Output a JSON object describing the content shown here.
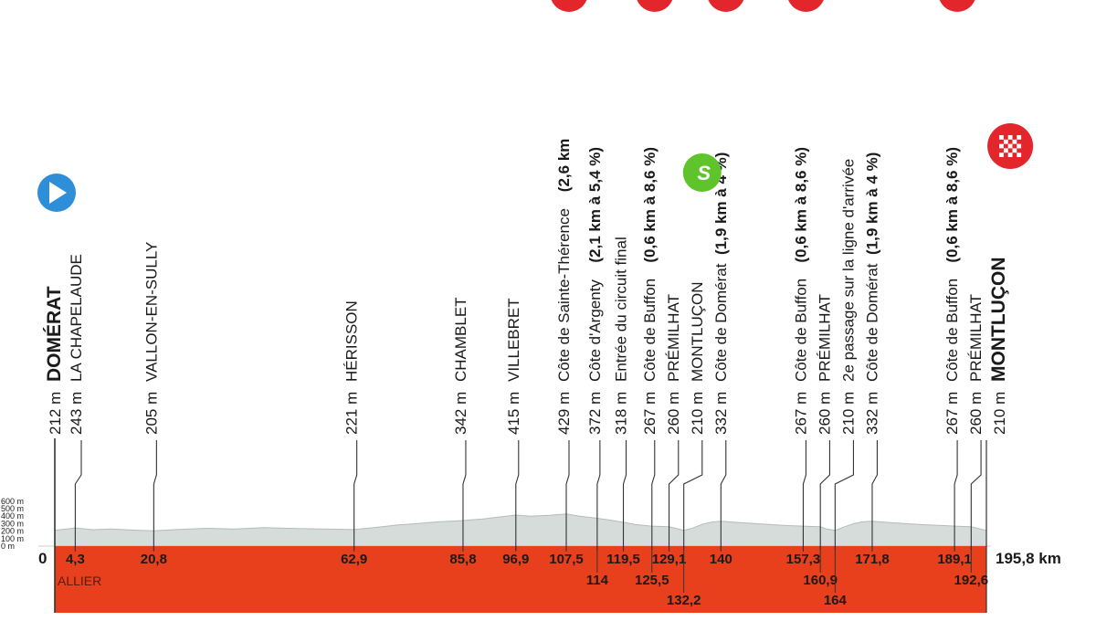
{
  "profile": {
    "unit_alt": "m",
    "unit_km": "km",
    "total_distance_label": "195,8 km",
    "department": "ALLIER",
    "altitude_scale": [
      "600 m",
      "500 m",
      "400 m",
      "300 m",
      "200 m",
      "100 m",
      "0 m"
    ],
    "origin_label": "0",
    "colors": {
      "base": "#e8401c",
      "terrain": "#d6dcda",
      "terrain_line": "#b3bcb9",
      "start_marker": "#2e8fd8",
      "sprint_marker": "#5fc42c",
      "climb_marker": "#e3262b",
      "finish_marker": "#e3262b",
      "text": "#1a1a1a"
    }
  },
  "waypoints": [
    {
      "km": 0,
      "km_label": "",
      "alt": "212 m",
      "name": "DOMÉRAT",
      "bold": true,
      "marker": "start"
    },
    {
      "km": 4.3,
      "km_label": "4,3",
      "alt": "243 m",
      "name": "LA CHAPELAUDE"
    },
    {
      "km": 20.8,
      "km_label": "20,8",
      "alt": "205 m",
      "name": "VALLON-EN-SULLY"
    },
    {
      "km": 62.9,
      "km_label": "62,9",
      "alt": "221 m",
      "name": "HÉRISSON"
    },
    {
      "km": 85.8,
      "km_label": "85,8",
      "alt": "342 m",
      "name": "CHAMBLET"
    },
    {
      "km": 96.9,
      "km_label": "96,9",
      "alt": "415 m",
      "name": "VILLEBRET"
    },
    {
      "km": 107.5,
      "km_label": "107,5",
      "alt": "429 m",
      "name": "Côte de Sainte-Thérence",
      "detail": "(2,6 km",
      "marker": "climb"
    },
    {
      "km": 114,
      "km_label": "114",
      "alt": "372 m",
      "name": "Côte d'Argenty",
      "detail": "(2,1 km à 5,4 %)"
    },
    {
      "km": 119.5,
      "km_label": "119,5",
      "alt": "318 m",
      "name": "Entrée du circuit final"
    },
    {
      "km": 125.5,
      "km_label": "125,5",
      "alt": "267 m",
      "name": "Côte de Buffon",
      "detail": "(0,6 km à 8,6 %)",
      "marker": "climb"
    },
    {
      "km": 129.1,
      "km_label": "129,1",
      "alt": "260 m",
      "name": "PRÉMILHAT"
    },
    {
      "km": 132.2,
      "km_label": "132,2",
      "alt": "210 m",
      "name": "MONTLUÇON",
      "marker": "sprint"
    },
    {
      "km": 140,
      "km_label": "140",
      "alt": "332 m",
      "name": "Côte de Domérat",
      "detail": "(1,9 km à 4 %)",
      "marker": "climb"
    },
    {
      "km": 157.3,
      "km_label": "157,3",
      "alt": "267 m",
      "name": "Côte de Buffon",
      "detail": "(0,6 km à 8,6 %)",
      "marker": "climb"
    },
    {
      "km": 160.9,
      "km_label": "160,9",
      "alt": "260 m",
      "name": "PRÉMILHAT"
    },
    {
      "km": 164,
      "km_label": "164",
      "alt": "210 m",
      "name": "2e passage sur la ligne d'arrivée"
    },
    {
      "km": 171.8,
      "km_label": "171,8",
      "alt": "332 m",
      "name": "Côte de Domérat",
      "detail": "(1,9 km à 4 %)"
    },
    {
      "km": 189.1,
      "km_label": "189,1",
      "alt": "267 m",
      "name": "Côte de Buffon",
      "detail": "(0,6 km à 8,6 %)",
      "marker": "climb"
    },
    {
      "km": 192.6,
      "km_label": "192,6",
      "alt": "260 m",
      "name": "PRÉMILHAT"
    },
    {
      "km": 195.8,
      "km_label": "",
      "alt": "210 m",
      "name": "MONTLUÇON",
      "bold": true,
      "marker": "finish"
    }
  ],
  "elevation_series": [
    [
      0,
      212
    ],
    [
      2,
      225
    ],
    [
      4.3,
      243
    ],
    [
      8,
      220
    ],
    [
      12,
      228
    ],
    [
      16,
      215
    ],
    [
      20.8,
      205
    ],
    [
      26,
      222
    ],
    [
      32,
      238
    ],
    [
      38,
      228
    ],
    [
      44,
      246
    ],
    [
      50,
      236
    ],
    [
      56,
      228
    ],
    [
      62.9,
      221
    ],
    [
      68,
      252
    ],
    [
      72,
      282
    ],
    [
      76,
      300
    ],
    [
      80,
      322
    ],
    [
      85.8,
      342
    ],
    [
      90,
      362
    ],
    [
      93,
      385
    ],
    [
      96.9,
      415
    ],
    [
      100,
      400
    ],
    [
      104,
      412
    ],
    [
      107.5,
      429
    ],
    [
      110,
      402
    ],
    [
      114,
      372
    ],
    [
      117,
      345
    ],
    [
      119.5,
      318
    ],
    [
      122,
      288
    ],
    [
      125.5,
      267
    ],
    [
      127,
      264
    ],
    [
      129.1,
      260
    ],
    [
      131,
      230
    ],
    [
      132.2,
      210
    ],
    [
      134,
      240
    ],
    [
      136,
      290
    ],
    [
      138,
      320
    ],
    [
      140,
      332
    ],
    [
      145,
      310
    ],
    [
      150,
      290
    ],
    [
      154,
      275
    ],
    [
      157.3,
      267
    ],
    [
      159,
      262
    ],
    [
      160.9,
      260
    ],
    [
      162,
      232
    ],
    [
      164,
      210
    ],
    [
      166,
      258
    ],
    [
      168,
      302
    ],
    [
      170,
      326
    ],
    [
      171.8,
      332
    ],
    [
      176,
      312
    ],
    [
      180,
      296
    ],
    [
      184,
      282
    ],
    [
      187,
      274
    ],
    [
      189.1,
      267
    ],
    [
      191,
      262
    ],
    [
      192.6,
      260
    ],
    [
      194,
      236
    ],
    [
      195.8,
      210
    ]
  ]
}
